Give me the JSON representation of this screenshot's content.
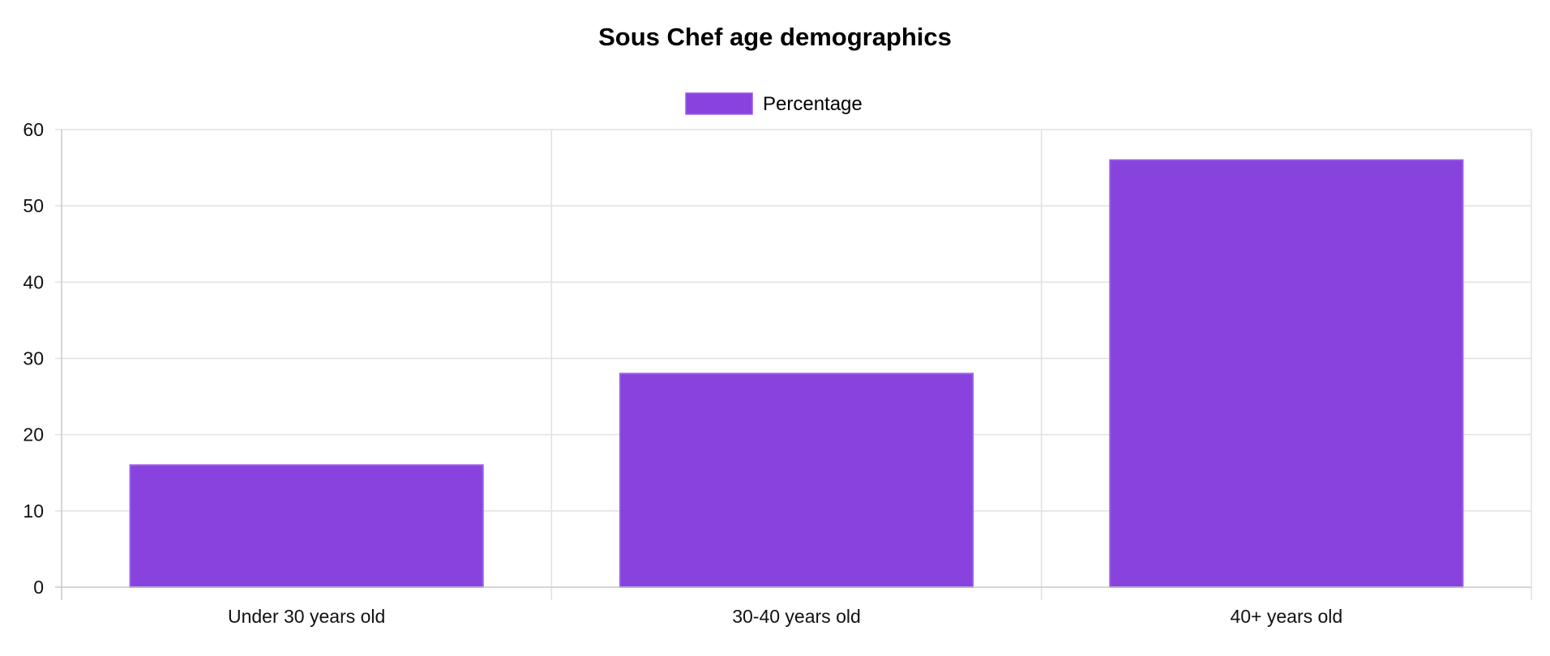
{
  "chart_data": {
    "type": "bar",
    "title": "Sous Chef age demographics",
    "categories": [
      "Under 30 years old",
      "30-40 years old",
      "40+ years old"
    ],
    "series": [
      {
        "name": "Percentage",
        "values": [
          16,
          28,
          56
        ],
        "color": "#8842de",
        "border_color": "#9b5ce8"
      }
    ],
    "ylim": [
      0,
      60
    ],
    "yticks": [
      0,
      10,
      20,
      30,
      40,
      50,
      60
    ],
    "xlabel": "",
    "ylabel": "",
    "grid": true,
    "legend_position": "top-center"
  }
}
